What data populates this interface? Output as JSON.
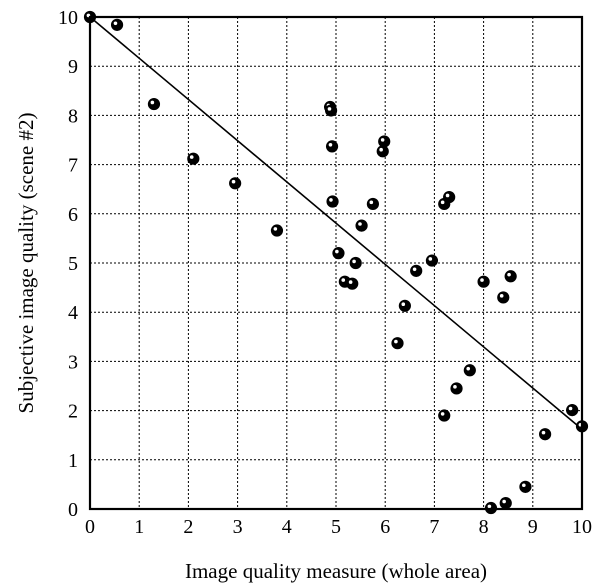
{
  "chart_data": {
    "type": "scatter",
    "title": "",
    "xlabel": "Image quality measure (whole area)",
    "ylabel": "Subjective image quality (scene #2)",
    "xlim": [
      0,
      10
    ],
    "ylim": [
      0,
      10
    ],
    "xticks": [
      0,
      1,
      2,
      3,
      4,
      5,
      6,
      7,
      8,
      9,
      10
    ],
    "yticks": [
      0,
      1,
      2,
      3,
      4,
      5,
      6,
      7,
      8,
      9,
      10
    ],
    "xtick_labels": [
      "0",
      "1",
      "2",
      "3",
      "4",
      "5",
      "6",
      "7",
      "8",
      "9",
      "10"
    ],
    "ytick_labels": [
      "0",
      "1",
      "2",
      "3",
      "4",
      "5",
      "6",
      "7",
      "8",
      "9",
      "10"
    ],
    "grid": true,
    "grid_style": "dotted",
    "legend": false,
    "colors": {
      "marker": "#000000",
      "line": "#000000",
      "grid": "#000000",
      "background": "#ffffff"
    },
    "trend_line": {
      "x": [
        0,
        10
      ],
      "y": [
        10,
        1.62
      ]
    },
    "points": [
      [
        0.0,
        10.0
      ],
      [
        0.55,
        9.84
      ],
      [
        1.3,
        8.23
      ],
      [
        2.1,
        7.12
      ],
      [
        2.95,
        6.62
      ],
      [
        3.8,
        5.66
      ],
      [
        4.88,
        8.17
      ],
      [
        4.9,
        8.1
      ],
      [
        4.92,
        7.37
      ],
      [
        4.93,
        6.25
      ],
      [
        5.05,
        5.2
      ],
      [
        5.18,
        4.62
      ],
      [
        5.33,
        4.58
      ],
      [
        5.4,
        5.0
      ],
      [
        5.52,
        5.76
      ],
      [
        5.75,
        6.2
      ],
      [
        5.95,
        7.27
      ],
      [
        5.98,
        7.47
      ],
      [
        6.25,
        3.37
      ],
      [
        6.4,
        4.13
      ],
      [
        6.63,
        4.84
      ],
      [
        6.95,
        5.05
      ],
      [
        7.2,
        6.2
      ],
      [
        7.3,
        6.34
      ],
      [
        7.2,
        1.9
      ],
      [
        7.45,
        2.45
      ],
      [
        7.72,
        2.82
      ],
      [
        8.0,
        4.62
      ],
      [
        8.4,
        4.3
      ],
      [
        8.55,
        4.73
      ],
      [
        8.15,
        0.02
      ],
      [
        8.45,
        0.12
      ],
      [
        8.85,
        0.45
      ],
      [
        9.25,
        1.52
      ],
      [
        9.8,
        2.01
      ],
      [
        10.0,
        1.68
      ]
    ]
  }
}
